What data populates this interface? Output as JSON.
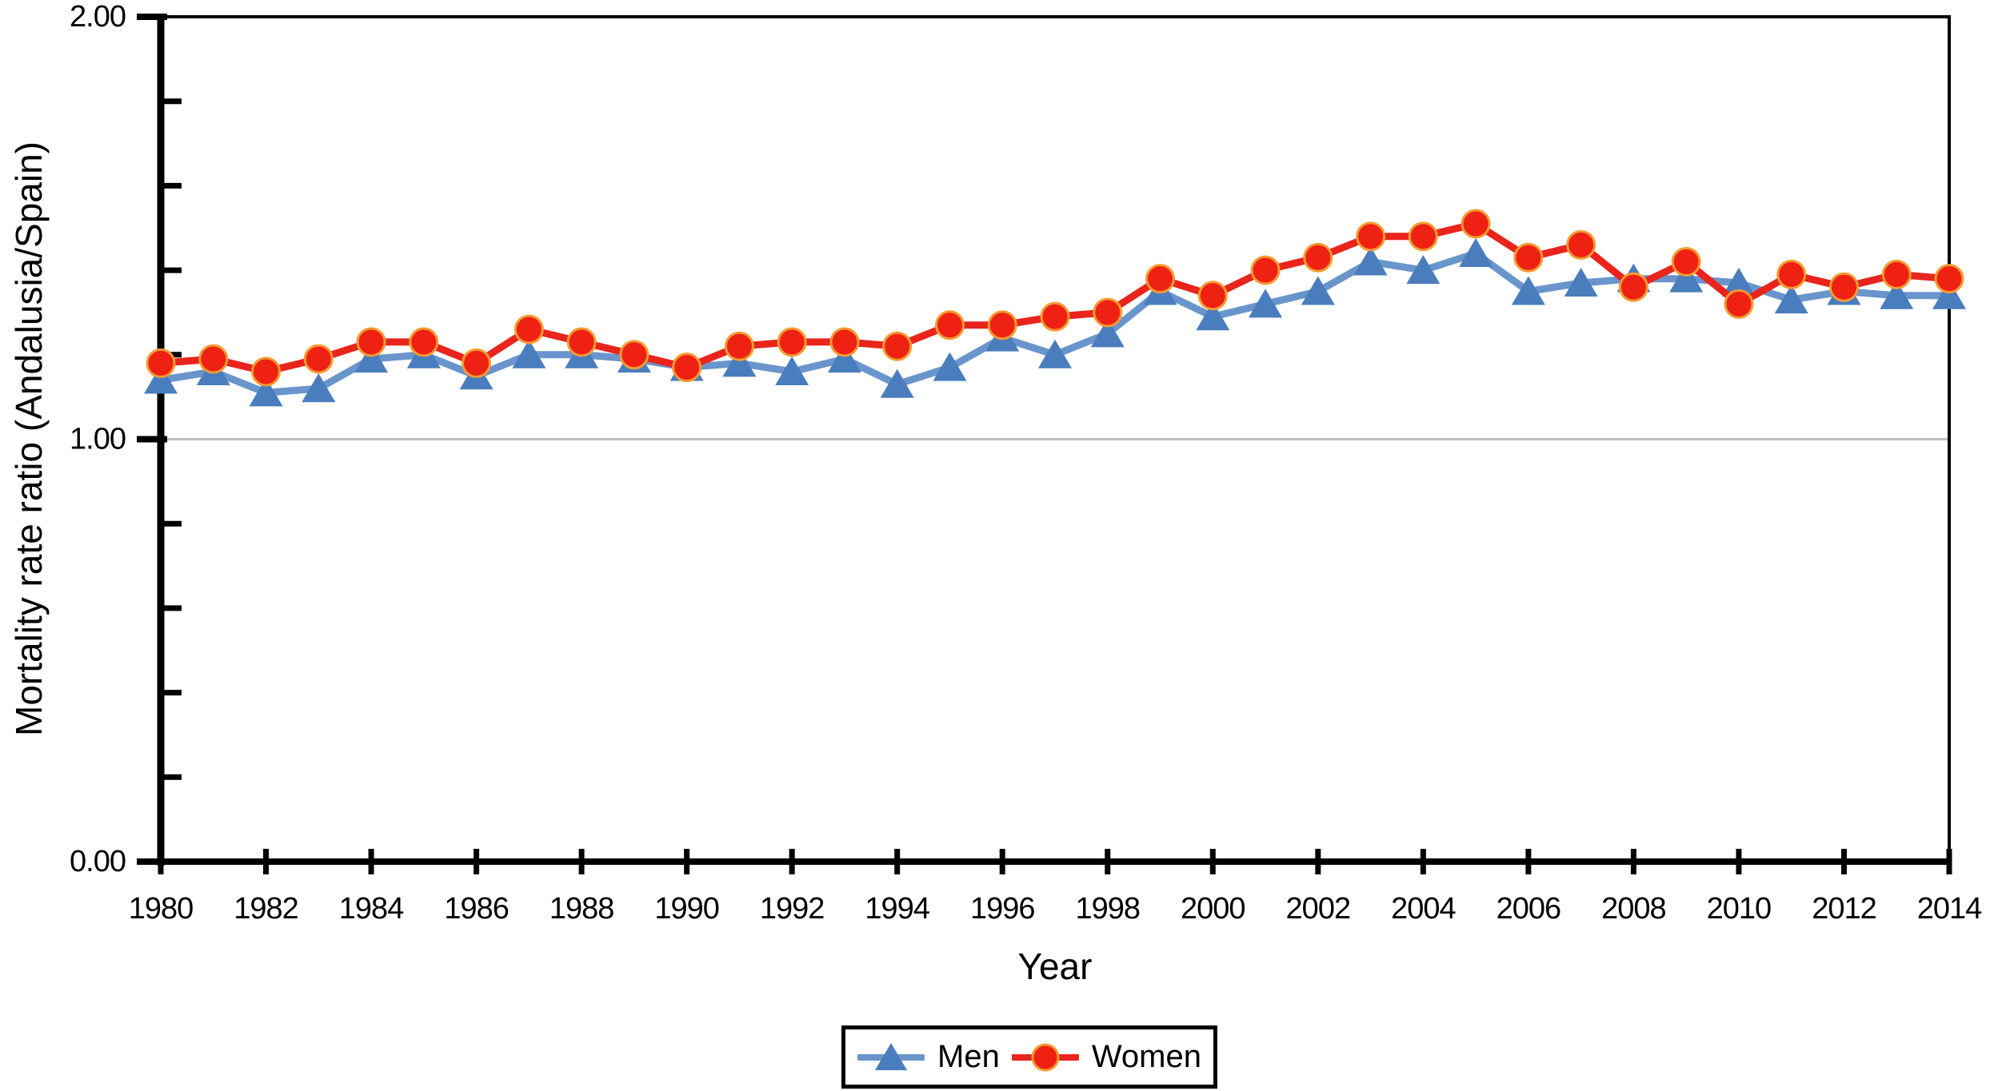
{
  "chart_data": {
    "type": "line",
    "title": "",
    "xlabel": "Year",
    "ylabel": "Mortality rate ratio (Andalusia/Spain)",
    "ylim": [
      0,
      2
    ],
    "gridline_at": 1.0,
    "grid": "horizontal line at 1.00 only",
    "legend_position": "bottom-center",
    "x": [
      1980,
      1981,
      1982,
      1983,
      1984,
      1985,
      1986,
      1987,
      1988,
      1989,
      1990,
      1991,
      1992,
      1993,
      1994,
      1995,
      1996,
      1997,
      1998,
      1999,
      2000,
      2001,
      2002,
      2003,
      2004,
      2005,
      2006,
      2007,
      2008,
      2009,
      2010,
      2011,
      2012,
      2013,
      2014
    ],
    "x_tick_labels": [
      "1980",
      "1982",
      "1984",
      "1986",
      "1988",
      "1990",
      "1992",
      "1994",
      "1996",
      "1998",
      "2000",
      "2002",
      "2004",
      "2006",
      "2008",
      "2010",
      "2012",
      "2014"
    ],
    "y_ticks": [
      {
        "value": 0,
        "label": "0.00"
      },
      {
        "value": 1,
        "label": "1.00"
      },
      {
        "value": 2,
        "label": "2.00"
      }
    ],
    "y_minor_ticks": [
      0.2,
      0.4,
      0.6,
      0.8,
      1.2,
      1.4,
      1.6,
      1.8
    ],
    "colors": {
      "axis": "#000000",
      "gridline": "#c0c0c0",
      "background": "#ffffff"
    },
    "series": [
      {
        "name": "Men",
        "marker": "triangle",
        "line_color": "#6a95cc",
        "marker_color": "#4a7dbd",
        "values": [
          1.14,
          1.16,
          1.11,
          1.12,
          1.19,
          1.2,
          1.15,
          1.2,
          1.2,
          1.19,
          1.17,
          1.18,
          1.16,
          1.19,
          1.13,
          1.17,
          1.24,
          1.2,
          1.25,
          1.35,
          1.29,
          1.32,
          1.35,
          1.42,
          1.4,
          1.44,
          1.35,
          1.37,
          1.38,
          1.38,
          1.37,
          1.33,
          1.35,
          1.34,
          1.34
        ]
      },
      {
        "name": "Women",
        "marker": "circle",
        "line_color": "#e9241c",
        "marker_color": "#ee2113",
        "marker_outline": "#f59b31",
        "values": [
          1.18,
          1.19,
          1.16,
          1.19,
          1.23,
          1.23,
          1.18,
          1.26,
          1.23,
          1.2,
          1.17,
          1.22,
          1.23,
          1.23,
          1.22,
          1.27,
          1.27,
          1.29,
          1.3,
          1.38,
          1.34,
          1.4,
          1.43,
          1.48,
          1.48,
          1.51,
          1.43,
          1.46,
          1.36,
          1.42,
          1.32,
          1.39,
          1.36,
          1.39,
          1.38
        ]
      }
    ]
  }
}
